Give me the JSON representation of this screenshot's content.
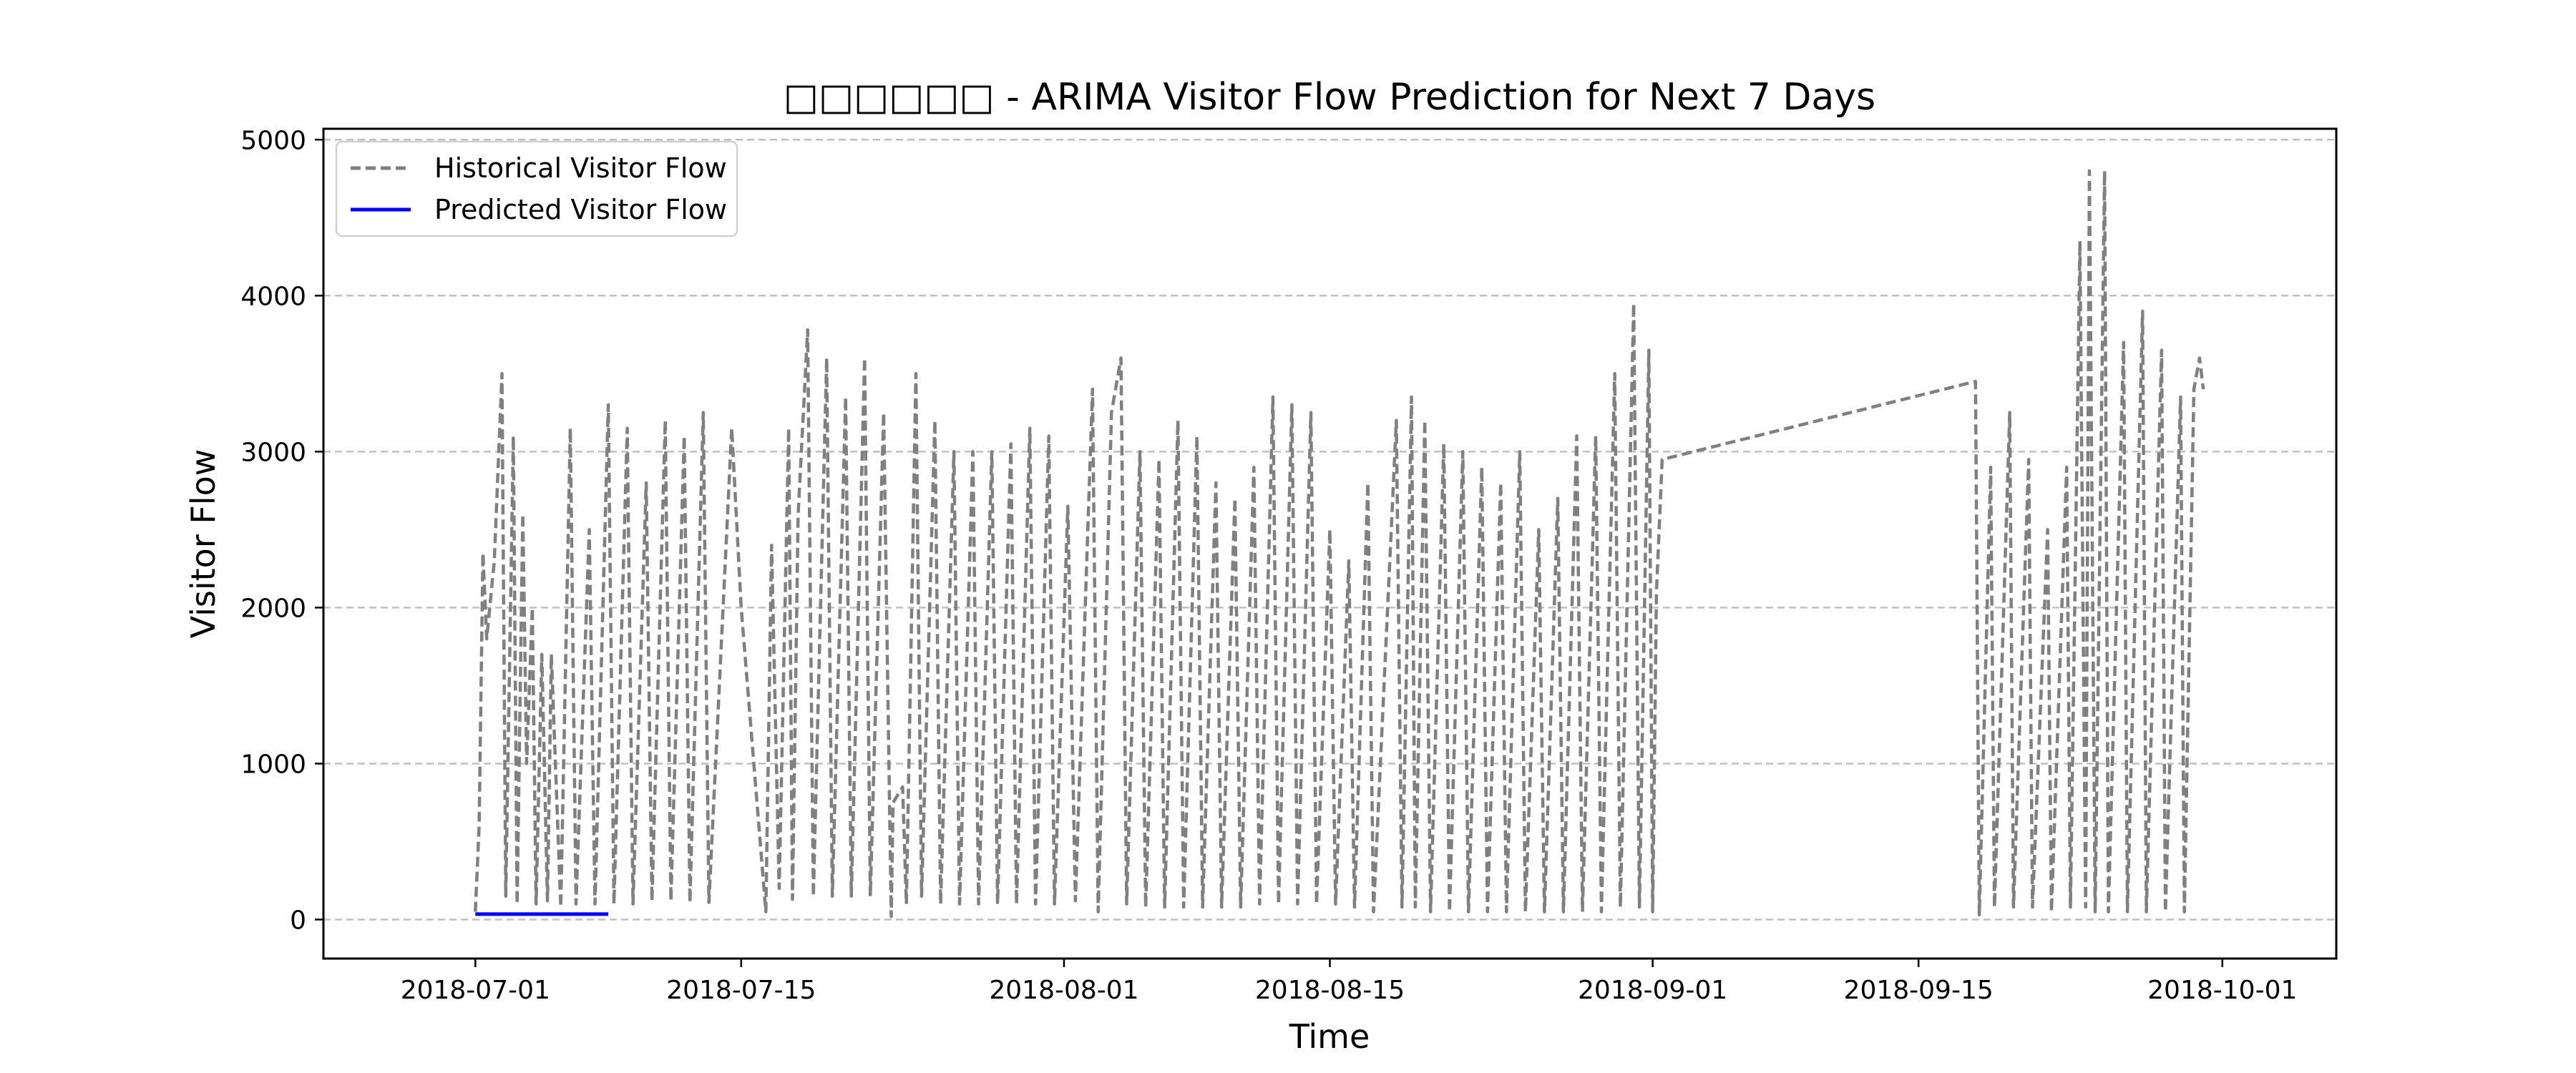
{
  "chart_data": {
    "type": "line",
    "title": "□□□□□□ - ARIMA Visitor Flow Prediction for Next 7 Days",
    "xlabel": "Time",
    "ylabel": "Visitor Flow",
    "xlim": [
      "2018-06-23",
      "2018-10-07"
    ],
    "ylim": [
      -250,
      5070
    ],
    "x_ticks": [
      "2018-07-01",
      "2018-07-15",
      "2018-08-01",
      "2018-08-15",
      "2018-09-01",
      "2018-09-15",
      "2018-10-01"
    ],
    "y_ticks": [
      0,
      1000,
      2000,
      3000,
      4000,
      5000
    ],
    "grid": "y-dashed",
    "legend_position": "top-left",
    "series": [
      {
        "name": "Historical Visitor Flow",
        "color": "#808080",
        "style": "dashed",
        "start": "2018-07-01",
        "points": [
          [
            0,
            50
          ],
          [
            0.2,
            600
          ],
          [
            0.4,
            2350
          ],
          [
            0.6,
            1800
          ],
          [
            1.0,
            2300
          ],
          [
            1.4,
            3500
          ],
          [
            1.6,
            150
          ],
          [
            2.0,
            3100
          ],
          [
            2.2,
            100
          ],
          [
            2.5,
            2600
          ],
          [
            2.7,
            1000
          ],
          [
            3.0,
            2000
          ],
          [
            3.2,
            100
          ],
          [
            3.5,
            1700
          ],
          [
            3.8,
            120
          ],
          [
            4.0,
            1700
          ],
          [
            4.5,
            80
          ],
          [
            5.0,
            3150
          ],
          [
            5.3,
            100
          ],
          [
            6.0,
            2500
          ],
          [
            6.3,
            100
          ],
          [
            7.0,
            3300
          ],
          [
            7.3,
            100
          ],
          [
            8.0,
            3150
          ],
          [
            8.3,
            100
          ],
          [
            9.0,
            2800
          ],
          [
            9.3,
            120
          ],
          [
            10.0,
            3200
          ],
          [
            10.3,
            120
          ],
          [
            11.0,
            3100
          ],
          [
            11.3,
            110
          ],
          [
            12.0,
            3250
          ],
          [
            12.3,
            110
          ],
          [
            13.5,
            3150
          ],
          [
            14.0,
            2000
          ],
          [
            15.3,
            50
          ],
          [
            15.6,
            2400
          ],
          [
            16.0,
            200
          ],
          [
            16.5,
            3150
          ],
          [
            16.7,
            130
          ],
          [
            17.0,
            2600
          ],
          [
            17.5,
            3780
          ],
          [
            17.8,
            150
          ],
          [
            18.5,
            3600
          ],
          [
            18.8,
            150
          ],
          [
            19.5,
            3350
          ],
          [
            19.8,
            150
          ],
          [
            20.5,
            3600
          ],
          [
            20.8,
            150
          ],
          [
            21.5,
            3250
          ],
          [
            21.9,
            20
          ],
          [
            22.0,
            750
          ],
          [
            22.5,
            850
          ],
          [
            22.7,
            100
          ],
          [
            23.2,
            3500
          ],
          [
            23.5,
            150
          ],
          [
            24.2,
            3200
          ],
          [
            24.5,
            100
          ],
          [
            25.2,
            3000
          ],
          [
            25.5,
            100
          ],
          [
            26.2,
            3000
          ],
          [
            26.5,
            100
          ],
          [
            27.2,
            3000
          ],
          [
            27.5,
            100
          ],
          [
            28.2,
            3050
          ],
          [
            28.5,
            100
          ],
          [
            29.2,
            3150
          ],
          [
            29.5,
            100
          ],
          [
            30.2,
            3100
          ],
          [
            30.5,
            100
          ],
          [
            31.2,
            2650
          ],
          [
            31.6,
            120
          ],
          [
            32.5,
            3400
          ],
          [
            32.8,
            50
          ],
          [
            33.5,
            3250
          ],
          [
            34.0,
            3600
          ],
          [
            34.3,
            100
          ],
          [
            35.0,
            3000
          ],
          [
            35.3,
            80
          ],
          [
            36.0,
            2950
          ],
          [
            36.3,
            80
          ],
          [
            37.0,
            3200
          ],
          [
            37.3,
            80
          ],
          [
            38.0,
            3100
          ],
          [
            38.3,
            80
          ],
          [
            39.0,
            2800
          ],
          [
            39.3,
            80
          ],
          [
            40.0,
            2700
          ],
          [
            40.3,
            80
          ],
          [
            41.0,
            2900
          ],
          [
            41.3,
            100
          ],
          [
            42.0,
            3350
          ],
          [
            42.3,
            100
          ],
          [
            43.0,
            3300
          ],
          [
            43.3,
            100
          ],
          [
            44.0,
            3250
          ],
          [
            44.3,
            100
          ],
          [
            45.0,
            2500
          ],
          [
            45.3,
            100
          ],
          [
            46.0,
            2300
          ],
          [
            46.3,
            80
          ],
          [
            47.0,
            2800
          ],
          [
            47.3,
            50
          ],
          [
            48.5,
            3200
          ],
          [
            48.8,
            80
          ],
          [
            49.3,
            3350
          ],
          [
            49.5,
            80
          ],
          [
            50.0,
            3200
          ],
          [
            50.3,
            50
          ],
          [
            51.0,
            3050
          ],
          [
            51.3,
            50
          ],
          [
            52.0,
            3000
          ],
          [
            52.3,
            50
          ],
          [
            53.0,
            2900
          ],
          [
            53.3,
            50
          ],
          [
            54.0,
            2800
          ],
          [
            54.3,
            50
          ],
          [
            55.0,
            3000
          ],
          [
            55.3,
            50
          ],
          [
            56.0,
            2500
          ],
          [
            56.3,
            50
          ],
          [
            57.0,
            2700
          ],
          [
            57.3,
            50
          ],
          [
            58.0,
            3100
          ],
          [
            58.3,
            50
          ],
          [
            59.0,
            3100
          ],
          [
            59.3,
            50
          ],
          [
            60.0,
            3500
          ],
          [
            60.3,
            80
          ],
          [
            61.0,
            3950
          ],
          [
            61.3,
            80
          ],
          [
            61.8,
            3650
          ],
          [
            62.0,
            50
          ],
          [
            62.2,
            2100
          ],
          [
            62.5,
            2950
          ],
          [
            79.0,
            3450
          ],
          [
            79.2,
            30
          ],
          [
            79.8,
            2900
          ],
          [
            80.0,
            80
          ],
          [
            80.8,
            3250
          ],
          [
            81.0,
            80
          ],
          [
            81.8,
            2950
          ],
          [
            82.0,
            80
          ],
          [
            82.8,
            2500
          ],
          [
            83.0,
            50
          ],
          [
            83.8,
            2900
          ],
          [
            84.0,
            80
          ],
          [
            84.5,
            4350
          ],
          [
            84.8,
            80
          ],
          [
            85.0,
            4800
          ],
          [
            85.3,
            50
          ],
          [
            85.8,
            4800
          ],
          [
            86.0,
            50
          ],
          [
            86.8,
            3700
          ],
          [
            87.0,
            50
          ],
          [
            87.8,
            3900
          ],
          [
            88.0,
            50
          ],
          [
            88.8,
            3650
          ],
          [
            89.0,
            50
          ],
          [
            89.8,
            3350
          ],
          [
            90.0,
            50
          ],
          [
            90.5,
            3400
          ],
          [
            90.8,
            3600
          ],
          [
            91.0,
            3400
          ]
        ]
      },
      {
        "name": "Predicted Visitor Flow",
        "color": "#0000ff",
        "style": "solid",
        "start": "2018-07-01",
        "points": [
          [
            0,
            35
          ],
          [
            1,
            35
          ],
          [
            2,
            35
          ],
          [
            3,
            35
          ],
          [
            4,
            35
          ],
          [
            5,
            35
          ],
          [
            6,
            35
          ],
          [
            7,
            35
          ]
        ]
      }
    ]
  }
}
